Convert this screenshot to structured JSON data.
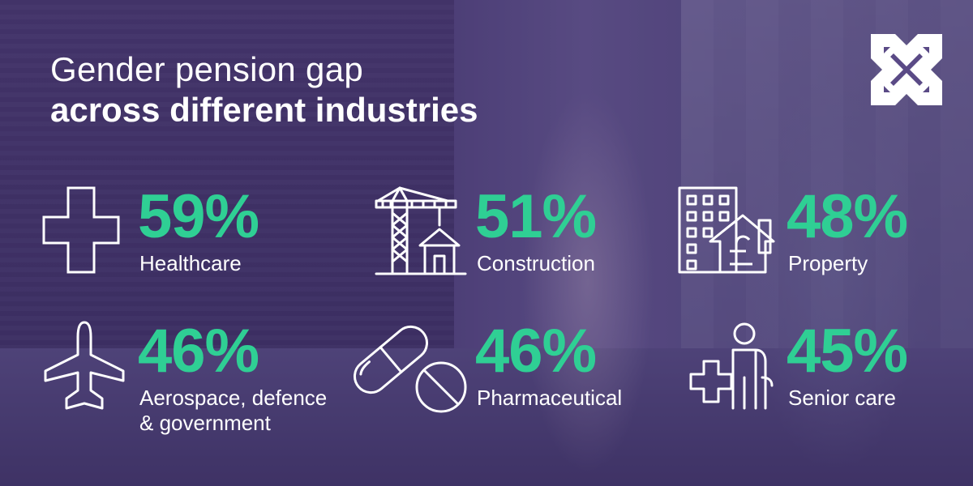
{
  "title": {
    "line1": "Gender pension gap",
    "line2": "across different industries"
  },
  "colors": {
    "accent": "#2fcf94",
    "text": "#ffffff",
    "overlay": "#3a2d5c"
  },
  "logo": {
    "icon": "x-logo-icon"
  },
  "stats": [
    {
      "value": "59%",
      "label": "Healthcare",
      "icon": "medical-cross-icon"
    },
    {
      "value": "51%",
      "label": "Construction",
      "icon": "construction-crane-icon"
    },
    {
      "value": "48%",
      "label": "Property",
      "icon": "property-building-icon"
    },
    {
      "value": "46%",
      "label_line1": "Aerospace, defence",
      "label_line2": "& government",
      "icon": "airplane-icon"
    },
    {
      "value": "46%",
      "label": "Pharmaceutical",
      "icon": "pills-icon"
    },
    {
      "value": "45%",
      "label": "Senior care",
      "icon": "senior-care-icon"
    }
  ]
}
